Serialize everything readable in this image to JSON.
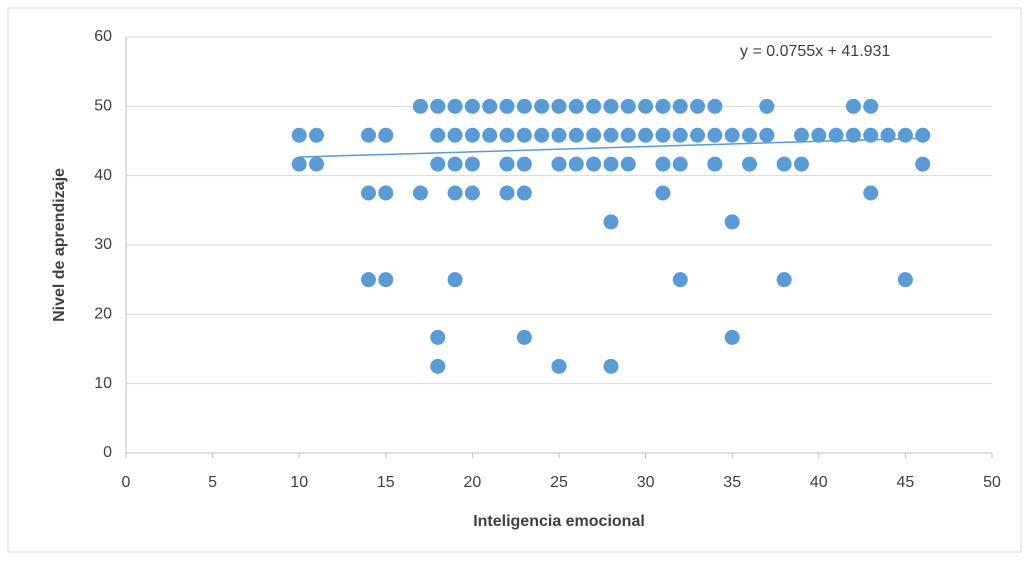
{
  "chart_data": {
    "type": "scatter",
    "xlabel": "Inteligencia emocional",
    "ylabel": "Nivel de aprendizaje",
    "trendline": {
      "label": "y = 0.0755x + 41.931",
      "slope": 0.0755,
      "intercept": 41.931,
      "color": "#5b9bd5"
    },
    "color": "#5b9bd5",
    "x": [
      17,
      18,
      19,
      20,
      21,
      22,
      23,
      24,
      25,
      26,
      27,
      28,
      29,
      30,
      31,
      32,
      33,
      34,
      37,
      42,
      43,
      10,
      11,
      14,
      15,
      18,
      19,
      20,
      21,
      22,
      23,
      24,
      25,
      26,
      27,
      28,
      29,
      30,
      31,
      32,
      33,
      34,
      35,
      36,
      37,
      39,
      40,
      41,
      42,
      43,
      44,
      45,
      46,
      10,
      11,
      18,
      19,
      20,
      22,
      23,
      25,
      26,
      27,
      28,
      29,
      31,
      32,
      34,
      36,
      38,
      39,
      46,
      14,
      15,
      17,
      19,
      20,
      22,
      23,
      31,
      43,
      28,
      35,
      14,
      15,
      19,
      32,
      38,
      45,
      18,
      23,
      35,
      18,
      25,
      28
    ],
    "values": [
      50,
      50,
      50,
      50,
      50,
      50,
      50,
      50,
      50,
      50,
      50,
      50,
      50,
      50,
      50,
      50,
      50,
      50,
      50,
      50,
      50,
      45.83,
      45.83,
      45.83,
      45.83,
      45.83,
      45.83,
      45.83,
      45.83,
      45.83,
      45.83,
      45.83,
      45.83,
      45.83,
      45.83,
      45.83,
      45.83,
      45.83,
      45.83,
      45.83,
      45.83,
      45.83,
      45.83,
      45.83,
      45.83,
      45.83,
      45.83,
      45.83,
      45.83,
      45.83,
      45.83,
      45.83,
      45.83,
      41.67,
      41.67,
      41.67,
      41.67,
      41.67,
      41.67,
      41.67,
      41.67,
      41.67,
      41.67,
      41.67,
      41.67,
      41.67,
      41.67,
      41.67,
      41.67,
      41.67,
      41.67,
      41.67,
      37.5,
      37.5,
      37.5,
      37.5,
      37.5,
      37.5,
      37.5,
      37.5,
      37.5,
      33.33,
      33.33,
      25,
      25,
      25,
      25,
      25,
      25,
      16.67,
      16.67,
      16.67,
      12.5,
      12.5,
      12.5
    ],
    "xlim": [
      0,
      50
    ],
    "xticks": [
      0,
      5,
      10,
      15,
      20,
      25,
      30,
      35,
      40,
      45,
      50
    ],
    "ylim": [
      0,
      60
    ],
    "yticks": [
      0,
      10,
      20,
      30,
      40,
      50,
      60
    ],
    "grid": true
  }
}
